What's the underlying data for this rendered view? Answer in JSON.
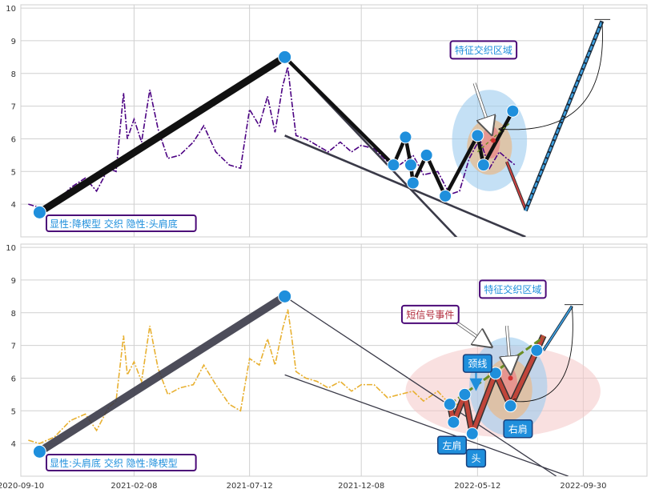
{
  "chart_data": [
    {
      "type": "line",
      "panel": "top",
      "title": "",
      "xlabel": "",
      "ylabel": "",
      "ylim": [
        3.0,
        10.1
      ],
      "y_ticks": [
        4,
        5,
        6,
        7,
        8,
        9,
        10
      ],
      "grid": true,
      "colors": {
        "price": "#4b0082",
        "accent": "#1f8fdc",
        "box_border": "#4b0a78"
      },
      "price_series": [
        {
          "x": "2020-09-20",
          "y": 4.0
        },
        {
          "x": "2020-10-05",
          "y": 3.9
        },
        {
          "x": "2020-10-25",
          "y": 4.0
        },
        {
          "x": "2020-11-15",
          "y": 4.5
        },
        {
          "x": "2020-12-05",
          "y": 4.8
        },
        {
          "x": "2020-12-20",
          "y": 4.4
        },
        {
          "x": "2021-01-05",
          "y": 5.1
        },
        {
          "x": "2021-01-15",
          "y": 5.0
        },
        {
          "x": "2021-01-25",
          "y": 7.4
        },
        {
          "x": "2021-01-30",
          "y": 6.0
        },
        {
          "x": "2021-02-08",
          "y": 6.6
        },
        {
          "x": "2021-02-18",
          "y": 5.9
        },
        {
          "x": "2021-03-01",
          "y": 7.5
        },
        {
          "x": "2021-03-12",
          "y": 6.3
        },
        {
          "x": "2021-03-25",
          "y": 5.4
        },
        {
          "x": "2021-04-10",
          "y": 5.5
        },
        {
          "x": "2021-04-28",
          "y": 5.9
        },
        {
          "x": "2021-05-12",
          "y": 6.4
        },
        {
          "x": "2021-05-28",
          "y": 5.6
        },
        {
          "x": "2021-06-15",
          "y": 5.2
        },
        {
          "x": "2021-06-30",
          "y": 5.1
        },
        {
          "x": "2021-07-12",
          "y": 6.9
        },
        {
          "x": "2021-07-25",
          "y": 6.4
        },
        {
          "x": "2021-08-05",
          "y": 7.3
        },
        {
          "x": "2021-08-15",
          "y": 6.2
        },
        {
          "x": "2021-08-25",
          "y": 7.6
        },
        {
          "x": "2021-09-01",
          "y": 8.2
        },
        {
          "x": "2021-09-06",
          "y": 7.2
        },
        {
          "x": "2021-09-12",
          "y": 6.1
        },
        {
          "x": "2021-09-25",
          "y": 6.0
        },
        {
          "x": "2021-10-10",
          "y": 5.8
        },
        {
          "x": "2021-10-25",
          "y": 5.6
        },
        {
          "x": "2021-11-10",
          "y": 5.9
        },
        {
          "x": "2021-11-25",
          "y": 5.6
        },
        {
          "x": "2021-12-08",
          "y": 5.8
        },
        {
          "x": "2021-12-25",
          "y": 5.7
        },
        {
          "x": "2022-01-12",
          "y": 5.3
        },
        {
          "x": "2022-01-28",
          "y": 5.2
        },
        {
          "x": "2022-02-15",
          "y": 5.5
        },
        {
          "x": "2022-03-01",
          "y": 4.9
        },
        {
          "x": "2022-03-20",
          "y": 5.0
        },
        {
          "x": "2022-04-05",
          "y": 4.3
        },
        {
          "x": "2022-04-18",
          "y": 4.4
        },
        {
          "x": "2022-05-01",
          "y": 5.4
        },
        {
          "x": "2022-05-15",
          "y": 6.0
        },
        {
          "x": "2022-05-28",
          "y": 5.1
        },
        {
          "x": "2022-06-10",
          "y": 5.6
        },
        {
          "x": "2022-06-20",
          "y": 5.4
        },
        {
          "x": "2022-07-01",
          "y": 5.2
        }
      ],
      "pattern_path": [
        {
          "x": "2020-10-05",
          "y": 3.75
        },
        {
          "x": "2021-08-28",
          "y": 8.5
        },
        {
          "x": "2022-01-20",
          "y": 5.2
        },
        {
          "x": "2022-02-05",
          "y": 6.05
        },
        {
          "x": "2022-02-12",
          "y": 5.2
        },
        {
          "x": "2022-02-15",
          "y": 4.65
        },
        {
          "x": "2022-03-05",
          "y": 5.5
        },
        {
          "x": "2022-03-30",
          "y": 4.25
        },
        {
          "x": "2022-05-12",
          "y": 6.1
        },
        {
          "x": "2022-05-20",
          "y": 5.2
        },
        {
          "x": "2022-06-28",
          "y": 6.85
        }
      ],
      "markers": [
        {
          "x": "2020-10-05",
          "y": 3.75
        },
        {
          "x": "2021-08-28",
          "y": 8.5
        },
        {
          "x": "2022-01-20",
          "y": 5.2
        },
        {
          "x": "2022-02-05",
          "y": 6.05
        },
        {
          "x": "2022-02-12",
          "y": 5.2
        },
        {
          "x": "2022-02-15",
          "y": 4.65
        },
        {
          "x": "2022-03-05",
          "y": 5.5
        },
        {
          "x": "2022-03-30",
          "y": 4.25
        },
        {
          "x": "2022-05-12",
          "y": 6.1
        },
        {
          "x": "2022-05-20",
          "y": 5.2
        },
        {
          "x": "2022-06-28",
          "y": 6.85
        }
      ],
      "trend_lines": [
        [
          {
            "x": "2021-08-28",
            "y": 8.5
          },
          {
            "x": "2022-05-25",
            "y": 2.0
          }
        ],
        [
          {
            "x": "2021-08-28",
            "y": 6.1
          },
          {
            "x": "2022-07-15",
            "y": 3.0
          }
        ]
      ],
      "target_line": [
        {
          "x": "2022-07-15",
          "y": 3.8
        },
        {
          "x": "2022-10-25",
          "y": 9.6
        }
      ],
      "target_cap": [
        {
          "x": "2022-10-15",
          "y": 9.65
        },
        {
          "x": "2022-11-05",
          "y": 9.65
        }
      ],
      "short_path": [
        {
          "x": "2022-06-20",
          "y": 5.3
        },
        {
          "x": "2022-07-15",
          "y": 3.85
        }
      ],
      "neckline": [
        {
          "x": "2022-05-12",
          "y": 5.6
        },
        {
          "x": "2022-06-25",
          "y": 6.5
        }
      ],
      "ellipse_outer": {
        "cx": "2022-05-28",
        "cy": 5.95,
        "rx_days": 50,
        "ry": 1.55
      },
      "ellipse_inner": {
        "cx": "2022-05-28",
        "cy": 5.75,
        "rx_days": 30,
        "ry": 0.85
      },
      "ellipse_core": {
        "cx": "2022-05-30",
        "cy": 5.9,
        "rx_days": 12,
        "ry": 0.5
      },
      "center_dot": {
        "x": "2022-06-02",
        "y": 5.95
      },
      "feature_label": {
        "x": "2022-05-20",
        "y": 8.72
      },
      "feature_arrow": [
        {
          "x": "2022-05-08",
          "y": 7.7
        },
        {
          "x": "2022-05-30",
          "y": 6.2
        }
      ],
      "curve_arrow": [
        {
          "x": "2022-10-25",
          "y": 9.6
        },
        {
          "x": "2022-06-10",
          "y": 6.3
        }
      ],
      "labels": {
        "feature": "特征交织区域",
        "bottom_box": "显性:降楔型 交织 隐性:头肩底"
      }
    },
    {
      "type": "line",
      "panel": "bottom",
      "title": "",
      "xlabel": "",
      "ylabel": "",
      "ylim": [
        3.0,
        10.1
      ],
      "y_ticks": [
        4,
        5,
        6,
        7,
        8,
        9,
        10
      ],
      "x_ticks": [
        "2020-09-10",
        "2021-02-08",
        "2021-07-12",
        "2021-12-08",
        "2022-05-12",
        "2022-09-30"
      ],
      "grid": true,
      "colors": {
        "price": "#e8b030",
        "accent": "#1f8fdc",
        "box_border": "#4b0a78"
      },
      "price_series": [
        {
          "x": "2020-09-20",
          "y": 4.1
        },
        {
          "x": "2020-10-05",
          "y": 4.0
        },
        {
          "x": "2020-10-25",
          "y": 4.2
        },
        {
          "x": "2020-11-15",
          "y": 4.7
        },
        {
          "x": "2020-12-05",
          "y": 4.9
        },
        {
          "x": "2020-12-20",
          "y": 4.4
        },
        {
          "x": "2021-01-05",
          "y": 5.1
        },
        {
          "x": "2021-01-15",
          "y": 5.3
        },
        {
          "x": "2021-01-25",
          "y": 7.3
        },
        {
          "x": "2021-01-30",
          "y": 6.1
        },
        {
          "x": "2021-02-08",
          "y": 6.5
        },
        {
          "x": "2021-02-18",
          "y": 5.9
        },
        {
          "x": "2021-03-01",
          "y": 7.6
        },
        {
          "x": "2021-03-12",
          "y": 6.3
        },
        {
          "x": "2021-03-25",
          "y": 5.5
        },
        {
          "x": "2021-04-10",
          "y": 5.7
        },
        {
          "x": "2021-04-28",
          "y": 5.8
        },
        {
          "x": "2021-05-12",
          "y": 6.4
        },
        {
          "x": "2021-05-28",
          "y": 5.8
        },
        {
          "x": "2021-06-15",
          "y": 5.2
        },
        {
          "x": "2021-06-30",
          "y": 5.0
        },
        {
          "x": "2021-07-12",
          "y": 6.6
        },
        {
          "x": "2021-07-25",
          "y": 6.4
        },
        {
          "x": "2021-08-05",
          "y": 7.2
        },
        {
          "x": "2021-08-15",
          "y": 6.4
        },
        {
          "x": "2021-08-25",
          "y": 7.5
        },
        {
          "x": "2021-09-01",
          "y": 8.1
        },
        {
          "x": "2021-09-06",
          "y": 7.3
        },
        {
          "x": "2021-09-12",
          "y": 6.2
        },
        {
          "x": "2021-09-25",
          "y": 6.0
        },
        {
          "x": "2021-10-10",
          "y": 5.9
        },
        {
          "x": "2021-10-25",
          "y": 5.7
        },
        {
          "x": "2021-11-10",
          "y": 5.9
        },
        {
          "x": "2021-11-25",
          "y": 5.6
        },
        {
          "x": "2021-12-08",
          "y": 5.8
        },
        {
          "x": "2021-12-25",
          "y": 5.8
        },
        {
          "x": "2022-01-12",
          "y": 5.4
        },
        {
          "x": "2022-01-28",
          "y": 5.5
        },
        {
          "x": "2022-02-15",
          "y": 5.6
        },
        {
          "x": "2022-03-01",
          "y": 5.3
        },
        {
          "x": "2022-03-20",
          "y": 5.6
        },
        {
          "x": "2022-04-05",
          "y": 5.2
        },
        {
          "x": "2022-04-18",
          "y": 5.2
        }
      ],
      "pattern_path": [
        {
          "x": "2020-10-05",
          "y": 3.75
        },
        {
          "x": "2021-08-28",
          "y": 8.5
        }
      ],
      "hs_path": [
        {
          "x": "2022-04-05",
          "y": 5.2
        },
        {
          "x": "2022-04-10",
          "y": 4.65
        },
        {
          "x": "2022-04-25",
          "y": 5.5
        },
        {
          "x": "2022-05-05",
          "y": 4.3
        },
        {
          "x": "2022-06-05",
          "y": 6.15
        },
        {
          "x": "2022-06-25",
          "y": 5.15
        },
        {
          "x": "2022-07-30",
          "y": 6.85
        },
        {
          "x": "2022-08-08",
          "y": 7.3
        }
      ],
      "markers": [
        {
          "x": "2020-10-05",
          "y": 3.75
        },
        {
          "x": "2021-08-28",
          "y": 8.5
        },
        {
          "x": "2022-04-05",
          "y": 5.2
        },
        {
          "x": "2022-04-10",
          "y": 4.65
        },
        {
          "x": "2022-04-25",
          "y": 5.5
        },
        {
          "x": "2022-05-05",
          "y": 4.3
        },
        {
          "x": "2022-06-05",
          "y": 6.15
        },
        {
          "x": "2022-06-25",
          "y": 5.15
        },
        {
          "x": "2022-07-30",
          "y": 6.85
        }
      ],
      "trend_lines": [
        [
          {
            "x": "2021-08-28",
            "y": 8.5
          },
          {
            "x": "2022-08-25",
            "y": 3.0
          }
        ],
        [
          {
            "x": "2021-08-28",
            "y": 6.1
          },
          {
            "x": "2022-09-10",
            "y": 3.0
          }
        ]
      ],
      "neckline": [
        {
          "x": "2022-04-05",
          "y": 5.2
        },
        {
          "x": "2022-08-08",
          "y": 7.25
        }
      ],
      "target_line": [
        {
          "x": "2022-08-08",
          "y": 6.85
        },
        {
          "x": "2022-09-15",
          "y": 8.2
        }
      ],
      "target_cap": [
        {
          "x": "2022-09-05",
          "y": 8.25
        },
        {
          "x": "2022-09-30",
          "y": 8.25
        }
      ],
      "ellipse_big": {
        "cx": "2022-06-15",
        "cy": 5.6,
        "rx_days": 130,
        "ry": 1.4
      },
      "ellipse_outer": {
        "cx": "2022-06-22",
        "cy": 5.75,
        "rx_days": 52,
        "ry": 1.5
      },
      "ellipse_inner": {
        "cx": "2022-06-22",
        "cy": 5.65,
        "rx_days": 32,
        "ry": 0.95
      },
      "ellipse_core": {
        "cx": "2022-06-22",
        "cy": 5.85,
        "rx_days": 12,
        "ry": 0.5
      },
      "center_dot": {
        "x": "2022-06-25",
        "y": 6.0
      },
      "short_label": {
        "x": "2022-03-10",
        "y": 7.95
      },
      "short_arrow": [
        {
          "x": "2022-04-08",
          "y": 7.8
        },
        {
          "x": "2022-05-28",
          "y": 7.0
        }
      ],
      "feature_label": {
        "x": "2022-06-28",
        "y": 8.72
      },
      "feature_arrow": [
        {
          "x": "2022-06-20",
          "y": 7.6
        },
        {
          "x": "2022-06-25",
          "y": 6.2
        }
      ],
      "neck_label": {
        "x": "2022-05-12",
        "y": 6.45
      },
      "neck_arrow": [
        {
          "x": "2022-05-10",
          "y": 6.2
        },
        {
          "x": "2022-05-10",
          "y": 5.7
        }
      ],
      "left_shoulder_label": {
        "x": "2022-04-08",
        "y": 3.95
      },
      "head_label": {
        "x": "2022-05-10",
        "y": 3.55
      },
      "right_shoulder_label": {
        "x": "2022-07-05",
        "y": 4.45
      },
      "curve_arrow": [
        {
          "x": "2022-09-15",
          "y": 8.2
        },
        {
          "x": "2022-06-25",
          "y": 5.3
        }
      ],
      "labels": {
        "short_signal": "短信号事件",
        "feature": "特征交织区域",
        "neckline": "颈线",
        "left_shoulder": "左肩",
        "head": "头",
        "right_shoulder": "右肩",
        "bottom_box": "显性:头肩底 交织 隐性:降楔型"
      }
    }
  ]
}
